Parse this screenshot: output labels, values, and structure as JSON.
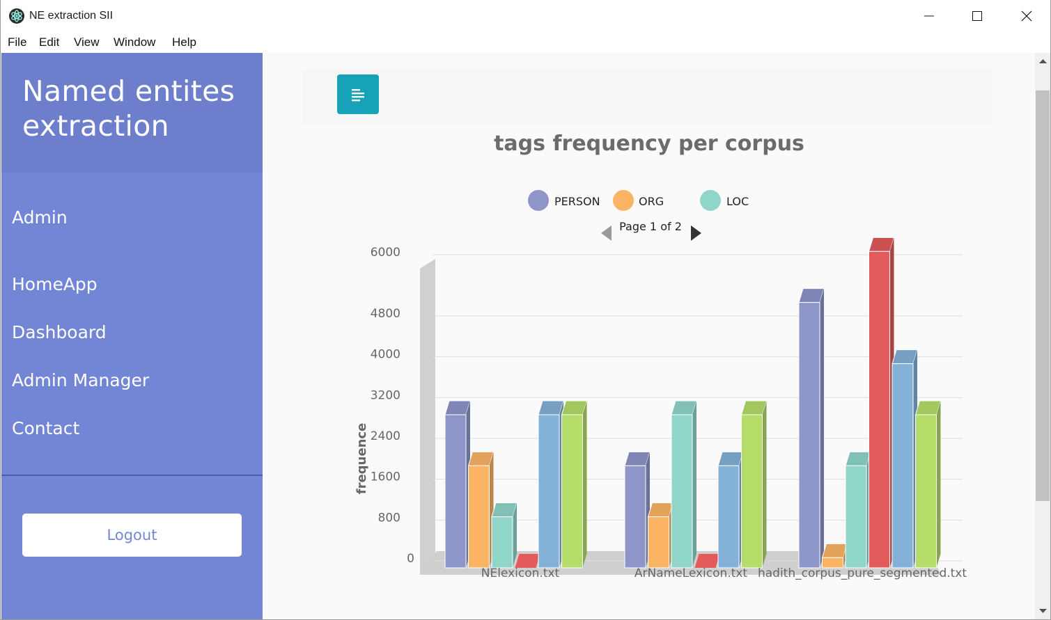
{
  "window": {
    "title": "NE extraction SII",
    "controls": {
      "minimize_icon": "minimize-icon",
      "maximize_icon": "maximize-icon",
      "close_icon": "close-icon"
    }
  },
  "menu": {
    "items": [
      {
        "label": "File"
      },
      {
        "label": "Edit"
      },
      {
        "label": "View"
      },
      {
        "label": "Window"
      },
      {
        "label": "Help"
      }
    ]
  },
  "sidebar": {
    "title": "Named entites extraction",
    "items": [
      {
        "label": "Admin"
      },
      {
        "label": "HomeApp"
      },
      {
        "label": "Dashboard"
      },
      {
        "label": "Admin Manager"
      },
      {
        "label": "Contact"
      }
    ],
    "logout_label": "Logout",
    "background": "#7386d5"
  },
  "toolbar": {
    "toggle_icon": "align-left-icon",
    "toggle_color": "#17a2b8"
  },
  "chart_data": {
    "type": "bar",
    "title": "tags frequency per corpus",
    "ylabel": "frequence",
    "xlabel": "",
    "categories": [
      "NElexicon.txt",
      "ArNameLexicon.txt",
      "hadith_corpus_pure_segmented.txt"
    ],
    "legend": {
      "entries": [
        "PERSON",
        "ORG",
        "LOC"
      ],
      "page_text": "Page 1 of 2",
      "placement": "top-center"
    },
    "ylim": [
      0,
      6000
    ],
    "yticks": [
      0,
      800,
      1600,
      2400,
      3200,
      4000,
      4800,
      6000
    ],
    "grid": true,
    "three_d": true,
    "series": [
      {
        "name": "PERSON",
        "color": "#8d95c9",
        "values": [
          3000,
          2000,
          5200
        ]
      },
      {
        "name": "ORG",
        "color": "#fbb464",
        "values": [
          2000,
          1000,
          200
        ]
      },
      {
        "name": "LOC",
        "color": "#8fd6c9",
        "values": [
          1000,
          3000,
          2000
        ]
      },
      {
        "color": "#e35b5b",
        "values": [
          0,
          0,
          6200
        ]
      },
      {
        "color": "#83b1d8",
        "values": [
          3000,
          2000,
          4000
        ]
      },
      {
        "color": "#b4dd6a",
        "values": [
          3000,
          3000,
          3000
        ]
      }
    ]
  }
}
